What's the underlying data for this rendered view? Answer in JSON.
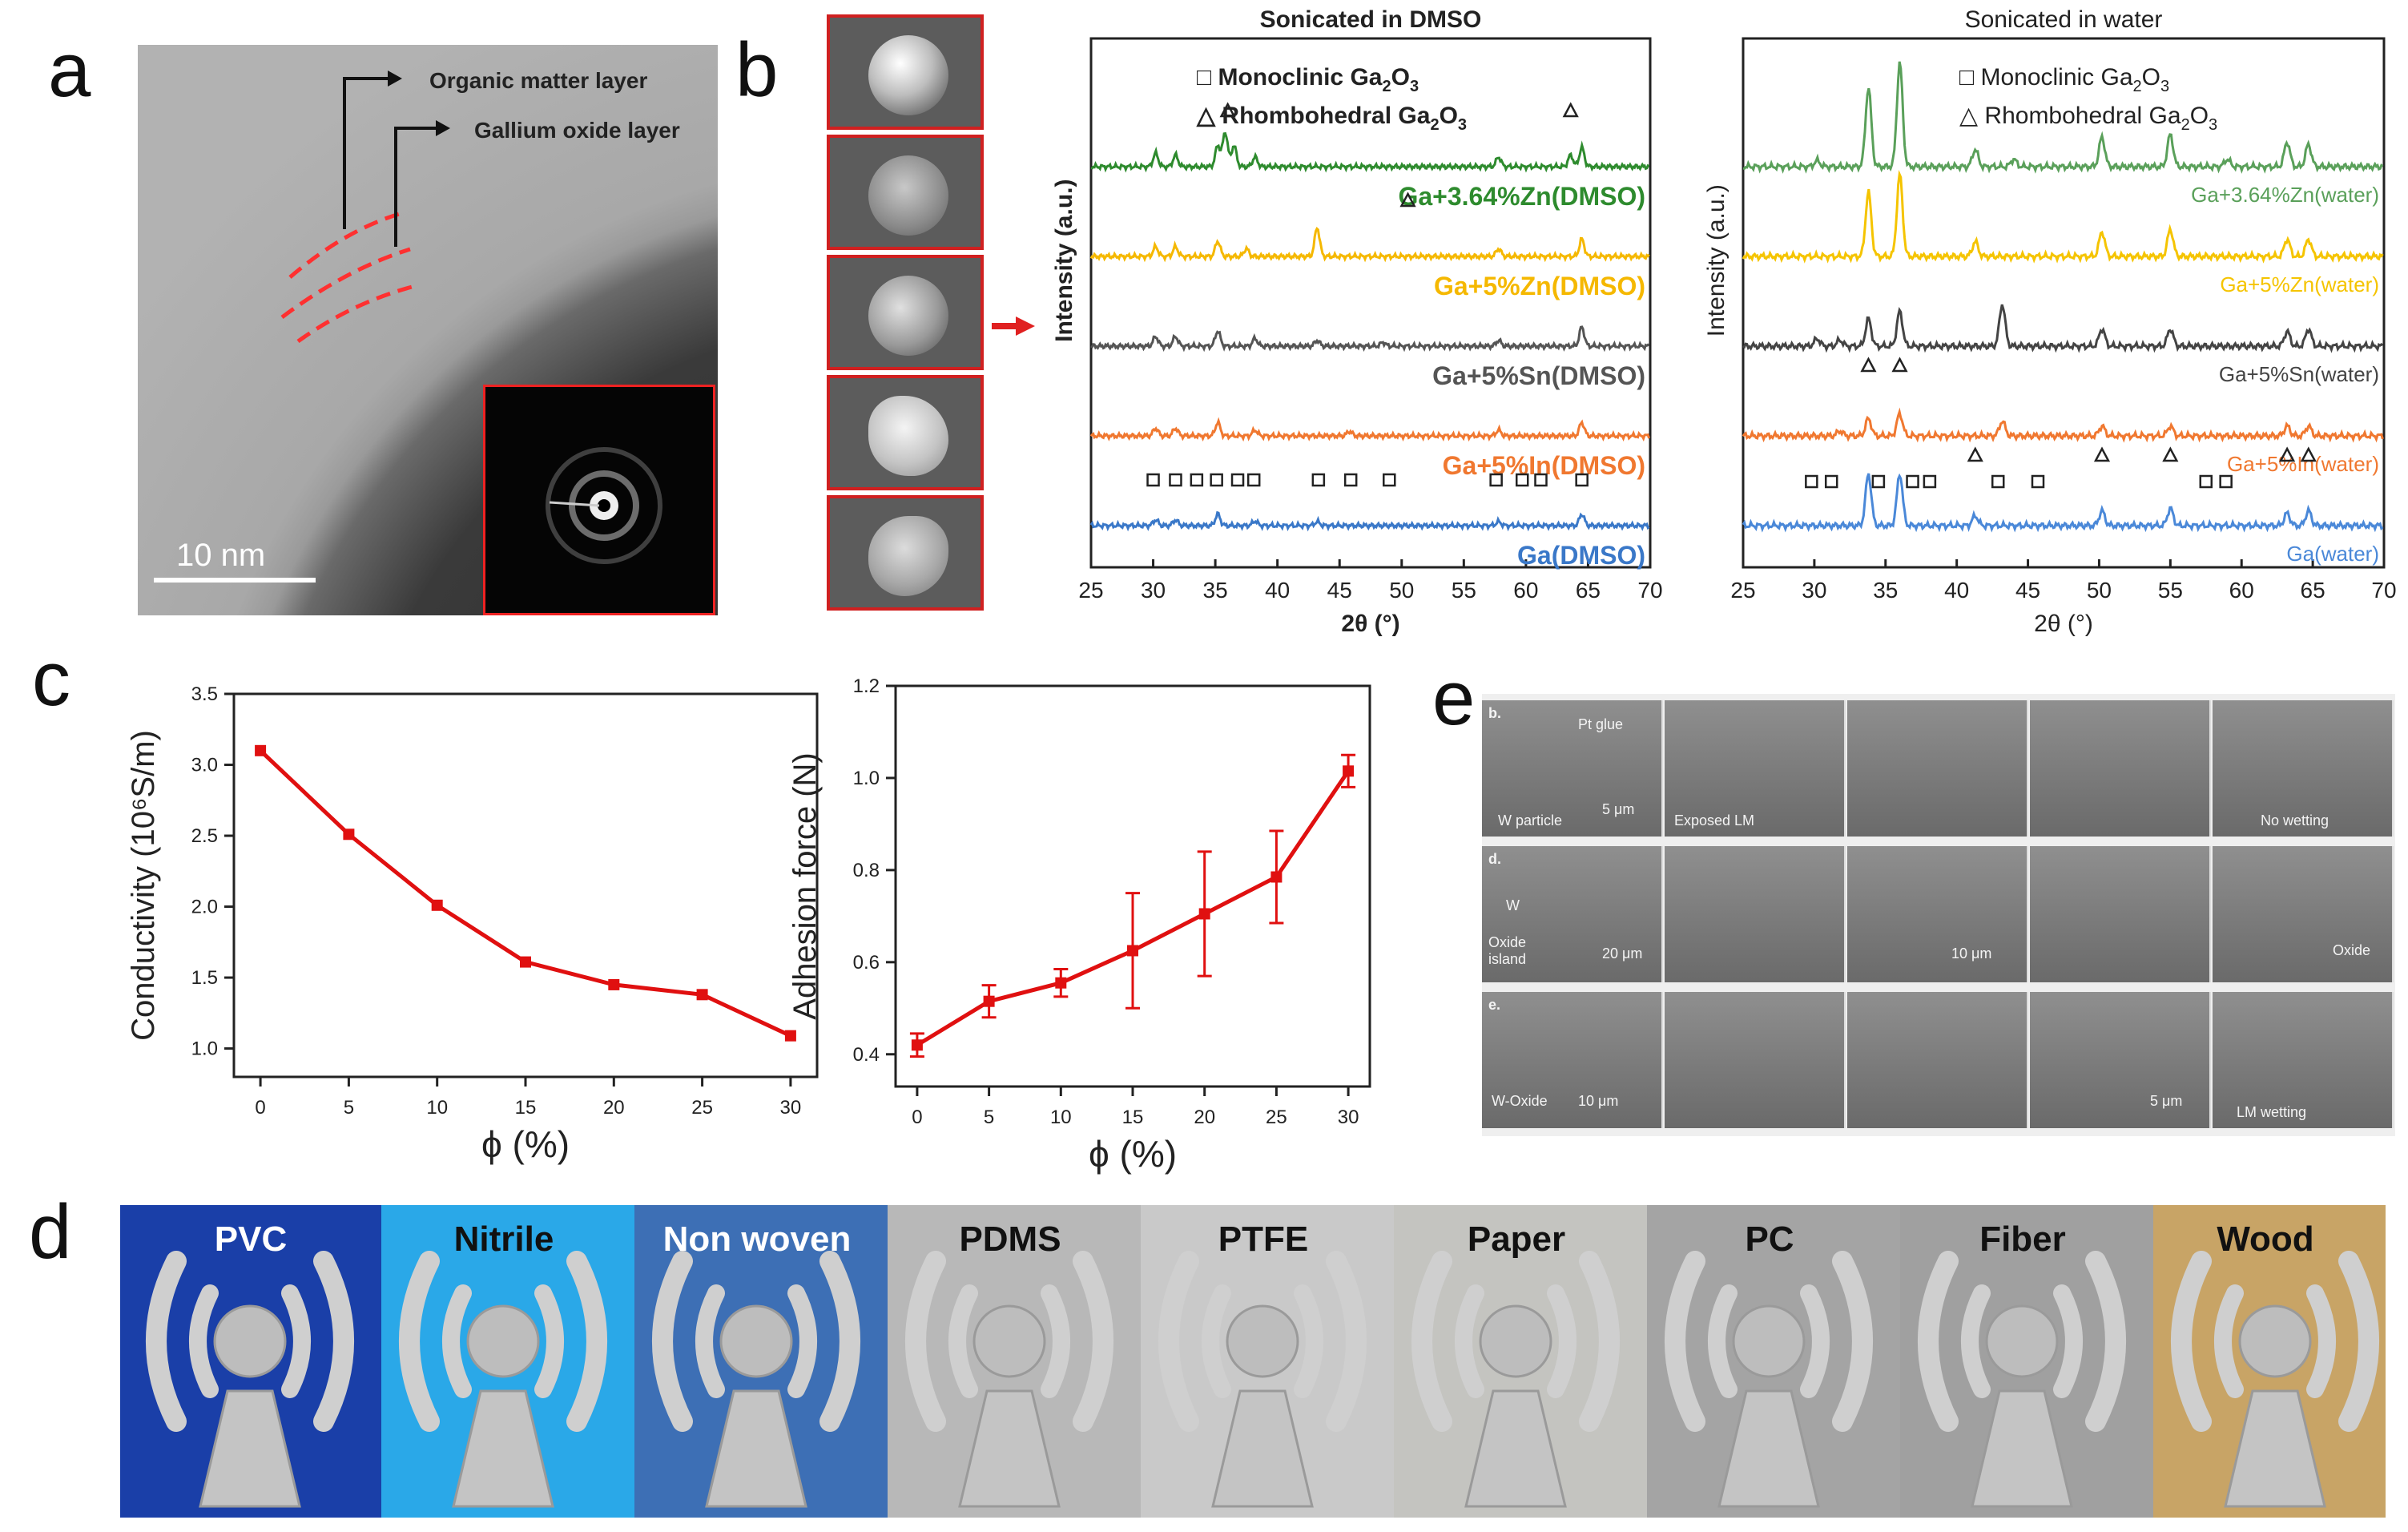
{
  "panel_labels": {
    "a": "a",
    "b": "b",
    "c": "c",
    "d": "d",
    "e": "e"
  },
  "panel_a": {
    "organic_layer": "Organic matter layer",
    "oxide_layer": "Gallium oxide layer",
    "scale_bar": "10 nm"
  },
  "chart_data": [
    {
      "id": "xrd-dmso",
      "type": "line",
      "title": "Sonicated in DMSO",
      "xlabel": "2θ (°)",
      "ylabel": "Intensity (a.u.)",
      "xlim": [
        25,
        70
      ],
      "xticks": [
        "25",
        "30",
        "35",
        "40",
        "45",
        "50",
        "55",
        "60",
        "65",
        "70"
      ],
      "legend": [
        {
          "symbol": "□",
          "text": "Monoclinic Ga",
          "sub": "2",
          "rest": "O",
          "sub2": "3"
        },
        {
          "symbol": "△",
          "text": "Rhombohedral Ga",
          "sub": "2",
          "rest": "O",
          "sub2": "3"
        }
      ],
      "series": [
        {
          "name": "Ga+3.64%Zn(DMSO)",
          "color": "#2e8b2e",
          "peaks": [
            [
              30.2,
              0.35
            ],
            [
              31.8,
              0.3
            ],
            [
              35.2,
              0.55
            ],
            [
              35.8,
              0.9
            ],
            [
              36.5,
              0.55
            ],
            [
              38.2,
              0.25
            ],
            [
              57.8,
              0.25
            ],
            [
              63.6,
              0.3
            ],
            [
              64.5,
              0.5
            ]
          ]
        },
        {
          "name": "Ga+5%Zn(DMSO)",
          "color": "#f5b800",
          "peaks": [
            [
              30.2,
              0.25
            ],
            [
              31.8,
              0.25
            ],
            [
              35.2,
              0.4
            ],
            [
              37.5,
              0.2
            ],
            [
              43.2,
              0.75
            ],
            [
              57.8,
              0.2
            ],
            [
              64.5,
              0.45
            ]
          ]
        },
        {
          "name": "Ga+5%Sn(DMSO)",
          "color": "#555555",
          "peaks": [
            [
              30.2,
              0.25
            ],
            [
              31.8,
              0.25
            ],
            [
              35.2,
              0.4
            ],
            [
              38.2,
              0.2
            ],
            [
              43.2,
              0.15
            ],
            [
              48.5,
              0.1
            ],
            [
              57.8,
              0.15
            ],
            [
              64.5,
              0.5
            ]
          ]
        },
        {
          "name": "Ga+5%In(DMSO)",
          "color": "#f07830",
          "peaks": [
            [
              30.2,
              0.2
            ],
            [
              31.8,
              0.2
            ],
            [
              35.2,
              0.35
            ],
            [
              38.2,
              0.15
            ],
            [
              45.8,
              0.12
            ],
            [
              57.8,
              0.15
            ],
            [
              64.5,
              0.35
            ]
          ]
        },
        {
          "name": "Ga(DMSO)",
          "color": "#3a78c8",
          "peaks": [
            [
              30.2,
              0.15
            ],
            [
              31.8,
              0.15
            ],
            [
              35.2,
              0.3
            ],
            [
              38.2,
              0.12
            ],
            [
              43.2,
              0.1
            ],
            [
              57.8,
              0.1
            ],
            [
              64.5,
              0.3
            ]
          ]
        }
      ],
      "monoclinic_markers": [
        30.0,
        31.8,
        33.5,
        35.1,
        36.8,
        38.1,
        43.3,
        45.9,
        49.0,
        57.6,
        59.7,
        61.2,
        64.5
      ],
      "rhombohedral_markers": [
        {
          "x": 36.0,
          "series": 0
        },
        {
          "x": 63.6,
          "series": 0
        },
        {
          "x": 50.5,
          "series": 1
        }
      ]
    },
    {
      "id": "xrd-water",
      "type": "line",
      "title": "Sonicated in water",
      "xlabel": "2θ (°)",
      "ylabel": "Intensity (a.u.)",
      "xlim": [
        25,
        70
      ],
      "xticks": [
        "25",
        "30",
        "35",
        "40",
        "45",
        "50",
        "55",
        "60",
        "65",
        "70"
      ],
      "legend": [
        {
          "symbol": "□",
          "text": "Monoclinic Ga",
          "sub": "2",
          "rest": "O",
          "sub2": "3"
        },
        {
          "symbol": "△",
          "text": "Rhombohedral Ga",
          "sub": "2",
          "rest": "O",
          "sub2": "3"
        }
      ],
      "series": [
        {
          "name": "Ga+3.64%Zn(water)",
          "color": "#5aa05a",
          "peaks": [
            [
              30.2,
              0.12
            ],
            [
              33.8,
              1.6
            ],
            [
              36.0,
              2.1
            ],
            [
              41.3,
              0.35
            ],
            [
              44.0,
              0.15
            ],
            [
              50.2,
              0.6
            ],
            [
              55.0,
              0.65
            ],
            [
              59.0,
              0.15
            ],
            [
              63.2,
              0.5
            ],
            [
              64.7,
              0.45
            ]
          ]
        },
        {
          "name": "Ga+5%Zn(water)",
          "color": "#f5c400",
          "peaks": [
            [
              33.8,
              1.3
            ],
            [
              36.0,
              1.65
            ],
            [
              41.3,
              0.3
            ],
            [
              50.2,
              0.5
            ],
            [
              55.0,
              0.55
            ],
            [
              63.2,
              0.35
            ],
            [
              64.7,
              0.35
            ]
          ]
        },
        {
          "name": "Ga+5%Sn(water)",
          "color": "#444444",
          "peaks": [
            [
              30.2,
              0.15
            ],
            [
              31.8,
              0.12
            ],
            [
              33.8,
              0.55
            ],
            [
              36.0,
              0.7
            ],
            [
              43.2,
              0.85
            ],
            [
              50.2,
              0.35
            ],
            [
              55.0,
              0.35
            ],
            [
              63.2,
              0.3
            ],
            [
              64.7,
              0.35
            ]
          ]
        },
        {
          "name": "Ga+5%In(water)",
          "color": "#f07830",
          "peaks": [
            [
              31.8,
              0.1
            ],
            [
              33.8,
              0.35
            ],
            [
              36.0,
              0.45
            ],
            [
              43.2,
              0.3
            ],
            [
              50.2,
              0.2
            ],
            [
              55.0,
              0.2
            ],
            [
              63.2,
              0.2
            ],
            [
              64.7,
              0.2
            ]
          ]
        },
        {
          "name": "Ga(water)",
          "color": "#4a88d8",
          "peaks": [
            [
              33.8,
              1.05
            ],
            [
              36.0,
              1.05
            ],
            [
              41.3,
              0.2
            ],
            [
              50.2,
              0.3
            ],
            [
              55.0,
              0.35
            ],
            [
              63.2,
              0.25
            ],
            [
              64.7,
              0.3
            ]
          ]
        }
      ],
      "monoclinic_markers": [
        29.8,
        31.2,
        34.5,
        36.9,
        38.1,
        42.9,
        45.7,
        57.5,
        58.9
      ],
      "rhombohedral_markers": [
        {
          "x": 33.8,
          "series": 3
        },
        {
          "x": 36.0,
          "series": 3
        },
        {
          "x": 41.3,
          "series": 4
        },
        {
          "x": 50.2,
          "series": 4
        },
        {
          "x": 55.0,
          "series": 4
        },
        {
          "x": 63.2,
          "series": 4
        },
        {
          "x": 64.7,
          "series": 4
        }
      ]
    },
    {
      "id": "conductivity",
      "type": "line",
      "xlabel": "ϕ (%)",
      "ylabel": "Conductivity  (10⁶S/m)",
      "x": [
        0,
        5,
        10,
        15,
        20,
        25,
        30
      ],
      "values": [
        3.1,
        2.51,
        2.01,
        1.61,
        1.45,
        1.38,
        1.09
      ],
      "xlim": [
        -1.5,
        31.5
      ],
      "ylim": [
        0.8,
        3.5
      ],
      "xticks": [
        "0",
        "5",
        "10",
        "15",
        "20",
        "25",
        "30"
      ],
      "yticks": [
        "1.0",
        "1.5",
        "2.0",
        "2.5",
        "3.0",
        "3.5"
      ],
      "color": "#e01010"
    },
    {
      "id": "adhesion",
      "type": "line",
      "xlabel": "ϕ (%)",
      "ylabel": "Adhesion force (N)",
      "x": [
        0,
        5,
        10,
        15,
        20,
        25,
        30
      ],
      "values": [
        0.42,
        0.515,
        0.555,
        0.625,
        0.705,
        0.785,
        1.015
      ],
      "errors": [
        0.025,
        0.035,
        0.03,
        0.125,
        0.135,
        0.1,
        0.035
      ],
      "xlim": [
        -1.5,
        31.5
      ],
      "ylim": [
        0.33,
        1.2
      ],
      "xticks": [
        "0",
        "5",
        "10",
        "15",
        "20",
        "25",
        "30"
      ],
      "yticks": [
        "0.4",
        "0.6",
        "0.8",
        "1.0",
        "1.2"
      ],
      "color": "#e01010"
    }
  ],
  "panel_e": {
    "row_labels": [
      "b.",
      "d.",
      "e."
    ],
    "row1": {
      "pt_glue": "Pt glue",
      "w_particle": "W particle",
      "scale": "5 μm",
      "exposed": "Exposed LM",
      "no_wetting": "No wetting"
    },
    "row2": {
      "w": "W",
      "oxide_island": "Oxide island",
      "scale1": "20 μm",
      "scale2": "10 μm",
      "oxide": "Oxide"
    },
    "row3": {
      "w_oxide": "W-Oxide",
      "scale1": "10 μm",
      "scale2": "5 μm",
      "lm_wetting": "LM wetting"
    }
  },
  "panel_d": {
    "substrates": [
      {
        "label": "PVC",
        "bg": "#1a3fa8",
        "text_color": "#ffffff"
      },
      {
        "label": "Nitrile",
        "bg": "#2aa8e8",
        "text_color": "#111111"
      },
      {
        "label": "Non woven",
        "bg": "#3d6fb5",
        "text_color": "#ffffff"
      },
      {
        "label": "PDMS",
        "bg": "#b8b8b8",
        "text_color": "#111111"
      },
      {
        "label": "PTFE",
        "bg": "#c9c9c9",
        "text_color": "#111111"
      },
      {
        "label": "Paper",
        "bg": "#c4c4c0",
        "text_color": "#111111"
      },
      {
        "label": "PC",
        "bg": "#a4a4a4",
        "text_color": "#111111"
      },
      {
        "label": "Fiber",
        "bg": "#a0a0a0",
        "text_color": "#111111"
      },
      {
        "label": "Wood",
        "bg": "#c8a466",
        "text_color": "#111111"
      }
    ]
  },
  "colors": {
    "red": "#e01010",
    "axis": "#222222"
  }
}
